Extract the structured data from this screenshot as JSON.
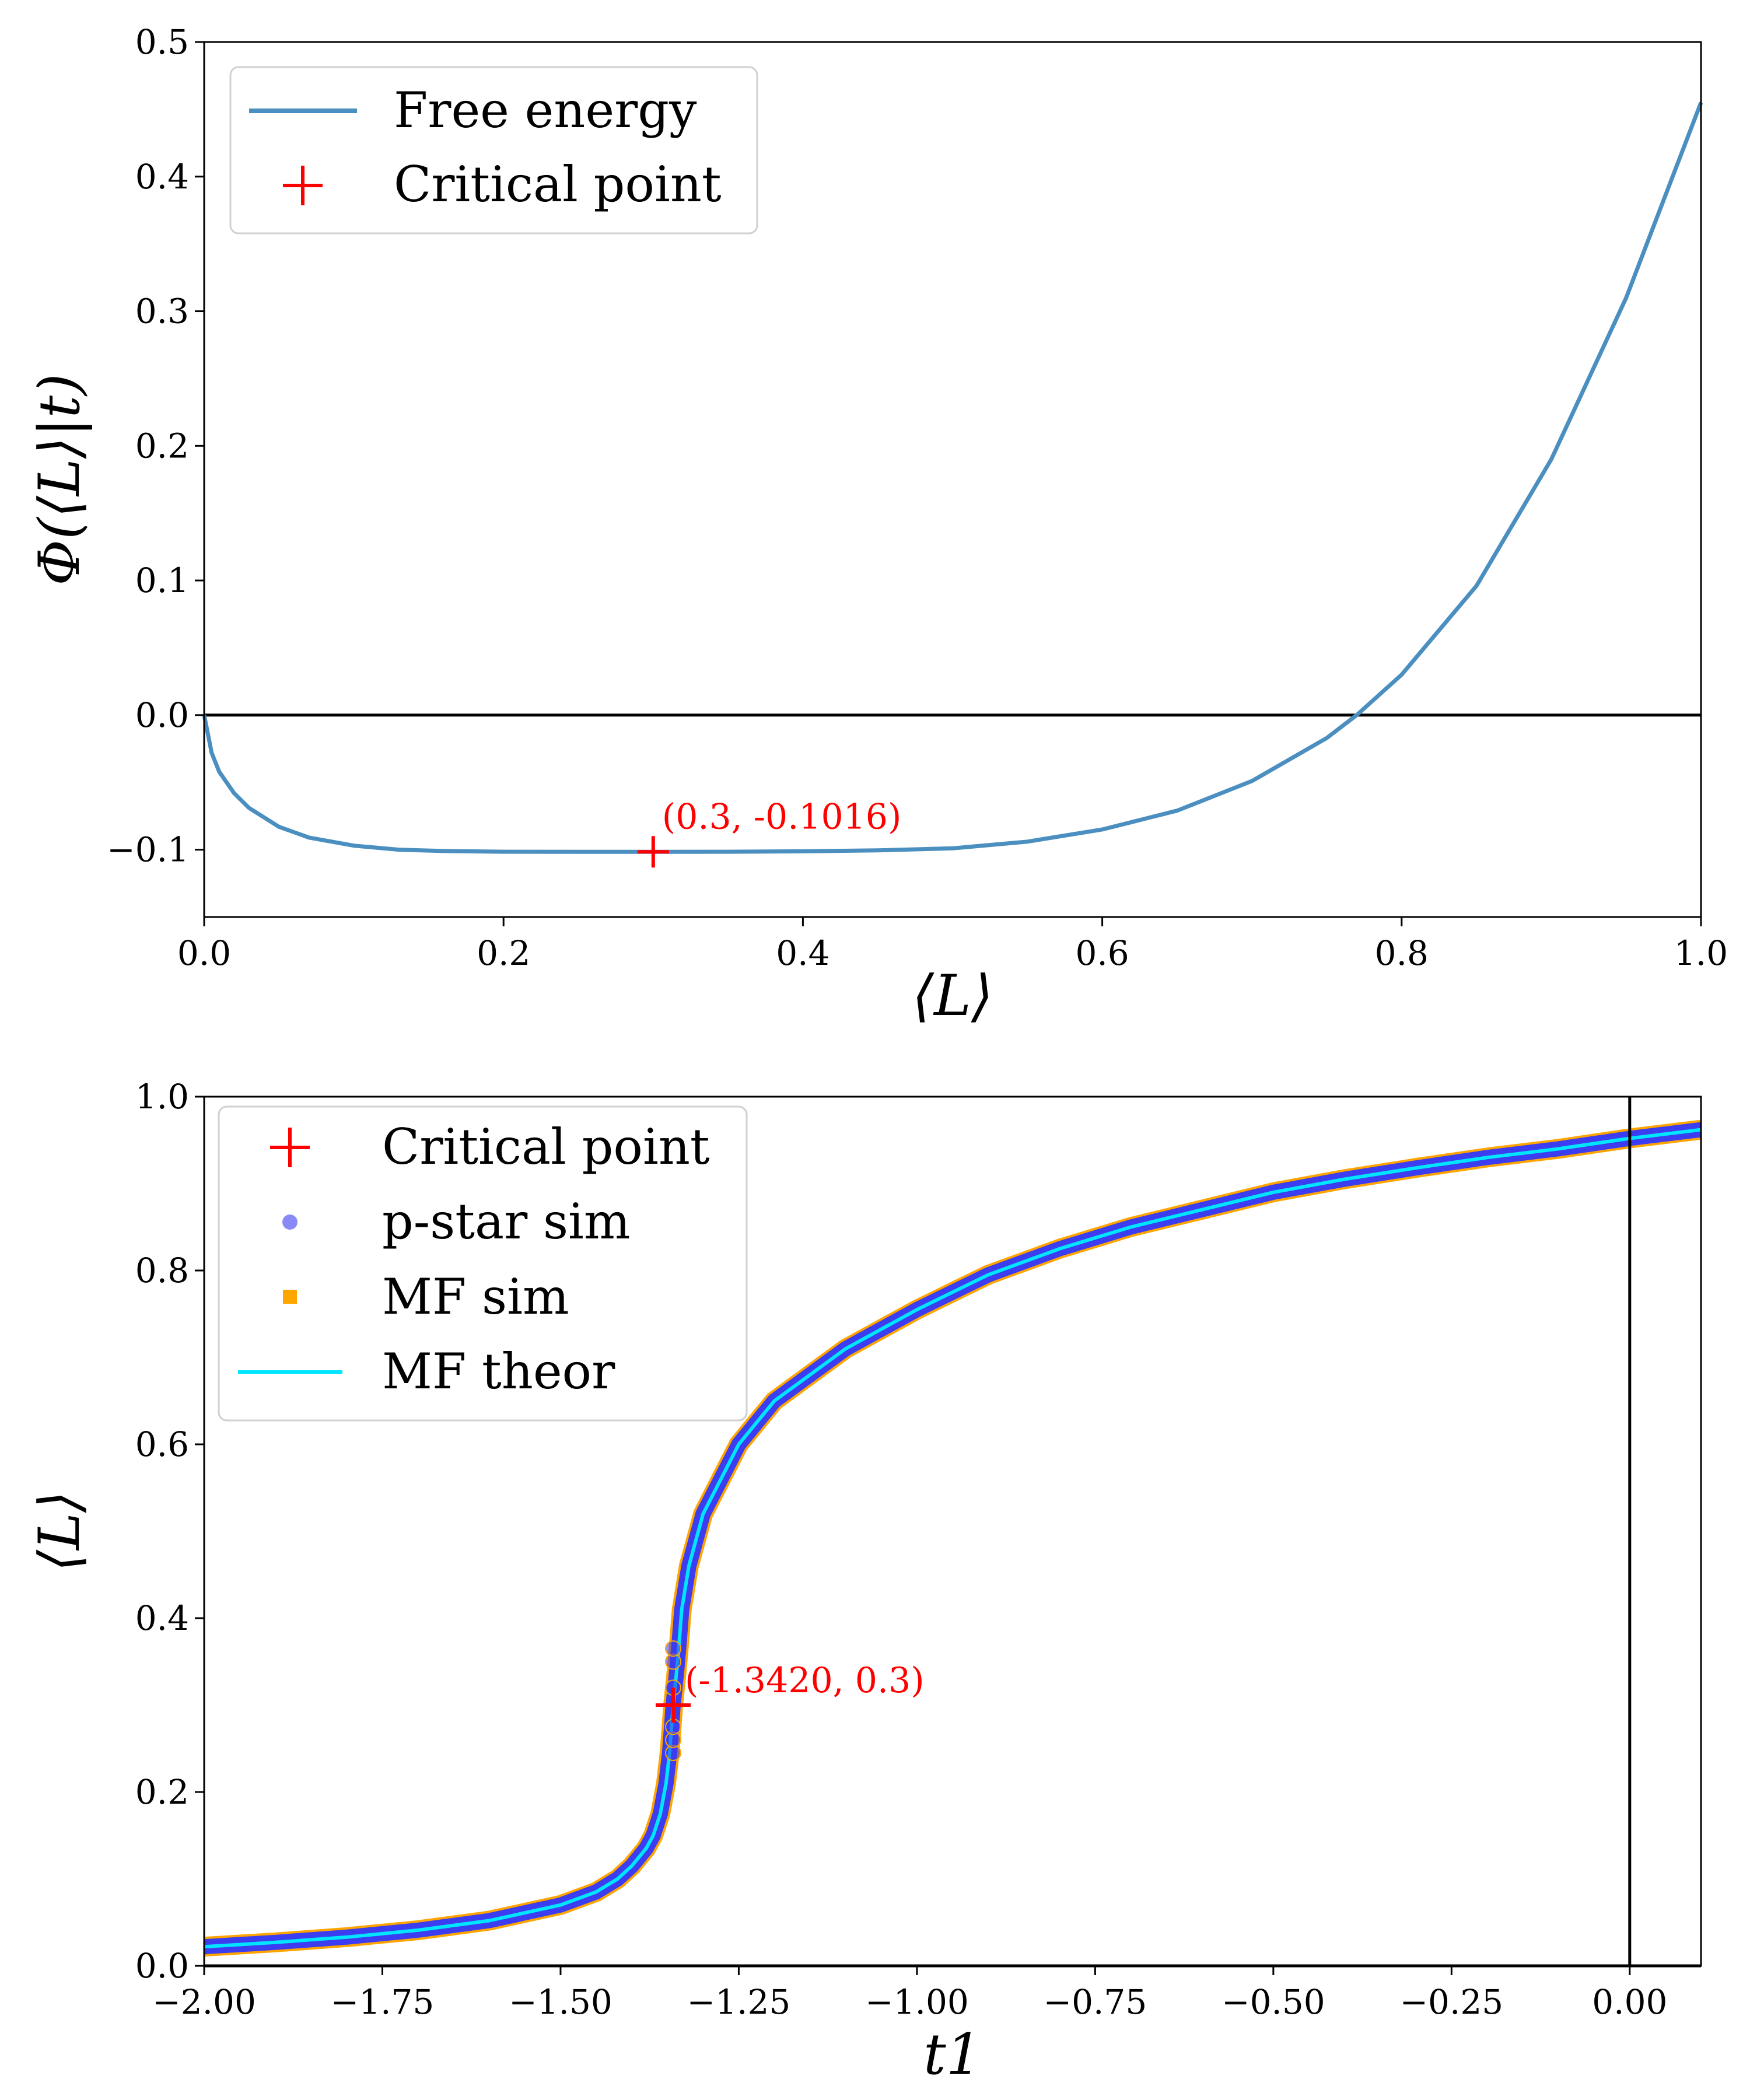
{
  "colors": {
    "free_energy": "#4a8fbf",
    "critical": "#ff0000",
    "pstar": "#3c3cf0",
    "mf_sim": "#ffa500",
    "mf_theor": "#00e5ff",
    "zero_line": "#000000"
  },
  "chart_data": [
    {
      "type": "line",
      "xlabel": "⟨L⟩",
      "ylabel": "Φ(⟨L⟩|t)",
      "xlim": [
        0.0,
        1.0
      ],
      "ylim": [
        -0.15,
        0.5
      ],
      "xticks": [
        0.0,
        0.2,
        0.4,
        0.6,
        0.8,
        1.0
      ],
      "xtick_labels": [
        "0.0",
        "0.2",
        "0.4",
        "0.6",
        "0.8",
        "1.0"
      ],
      "yticks": [
        -0.1,
        0.0,
        0.1,
        0.2,
        0.3,
        0.4,
        0.5
      ],
      "ytick_labels": [
        "−0.1",
        "0.0",
        "0.1",
        "0.2",
        "0.3",
        "0.4",
        "0.5"
      ],
      "grid": false,
      "legend_position": "top-left",
      "series": [
        {
          "name": "Free energy",
          "x": [
            0.0,
            0.005,
            0.01,
            0.02,
            0.03,
            0.05,
            0.07,
            0.1,
            0.13,
            0.16,
            0.2,
            0.25,
            0.3,
            0.35,
            0.4,
            0.45,
            0.5,
            0.55,
            0.6,
            0.65,
            0.7,
            0.75,
            0.77,
            0.8,
            0.85,
            0.9,
            0.95,
            1.0
          ],
          "y": [
            0.0,
            -0.028,
            -0.042,
            -0.058,
            -0.069,
            -0.083,
            -0.091,
            -0.097,
            -0.1,
            -0.101,
            -0.1015,
            -0.1016,
            -0.1016,
            -0.1015,
            -0.1012,
            -0.1005,
            -0.099,
            -0.094,
            -0.085,
            -0.071,
            -0.049,
            -0.017,
            0.0,
            0.03,
            0.096,
            0.19,
            0.31,
            0.455
          ]
        }
      ],
      "critical_point": {
        "name": "Critical point",
        "x": 0.3,
        "y": -0.1016,
        "label": "(0.3, -0.1016)"
      },
      "hline": 0.0
    },
    {
      "type": "line",
      "xlabel": "t1",
      "ylabel": "⟨L⟩",
      "xlim": [
        -2.0,
        0.1
      ],
      "ylim": [
        0.0,
        1.0
      ],
      "xticks": [
        -2.0,
        -1.75,
        -1.5,
        -1.25,
        -1.0,
        -0.75,
        -0.5,
        -0.25,
        0.0
      ],
      "xtick_labels": [
        "−2.00",
        "−1.75",
        "−1.50",
        "−1.25",
        "−1.00",
        "−0.75",
        "−0.50",
        "−0.25",
        "0.00"
      ],
      "yticks": [
        0.0,
        0.2,
        0.4,
        0.6,
        0.8,
        1.0
      ],
      "ytick_labels": [
        "0.0",
        "0.2",
        "0.4",
        "0.6",
        "0.8",
        "1.0"
      ],
      "grid": false,
      "legend_position": "top-left",
      "series": [
        {
          "name": "p-star sim",
          "marker": "circle"
        },
        {
          "name": "MF sim",
          "marker": "square"
        },
        {
          "name": "MF theor",
          "x": [
            -2.0,
            -1.9,
            -1.8,
            -1.7,
            -1.6,
            -1.5,
            -1.45,
            -1.42,
            -1.4,
            -1.38,
            -1.37,
            -1.36,
            -1.352,
            -1.347,
            -1.342,
            -1.337,
            -1.334,
            -1.33,
            -1.32,
            -1.3,
            -1.25,
            -1.2,
            -1.1,
            -1.0,
            -0.9,
            -0.8,
            -0.7,
            -0.6,
            -0.5,
            -0.4,
            -0.3,
            -0.2,
            -0.1,
            0.0,
            0.1
          ],
          "y": [
            0.022,
            0.027,
            0.033,
            0.041,
            0.052,
            0.07,
            0.085,
            0.1,
            0.115,
            0.135,
            0.15,
            0.175,
            0.21,
            0.245,
            0.3,
            0.34,
            0.368,
            0.41,
            0.46,
            0.52,
            0.6,
            0.65,
            0.71,
            0.755,
            0.795,
            0.825,
            0.85,
            0.87,
            0.89,
            0.905,
            0.918,
            0.93,
            0.94,
            0.952,
            0.962
          ]
        }
      ],
      "critical_point": {
        "name": "Critical point",
        "x": -1.342,
        "y": 0.3,
        "label": "(-1.3420, 0.3)"
      },
      "hline": 0.0,
      "vline": 0.0
    }
  ]
}
